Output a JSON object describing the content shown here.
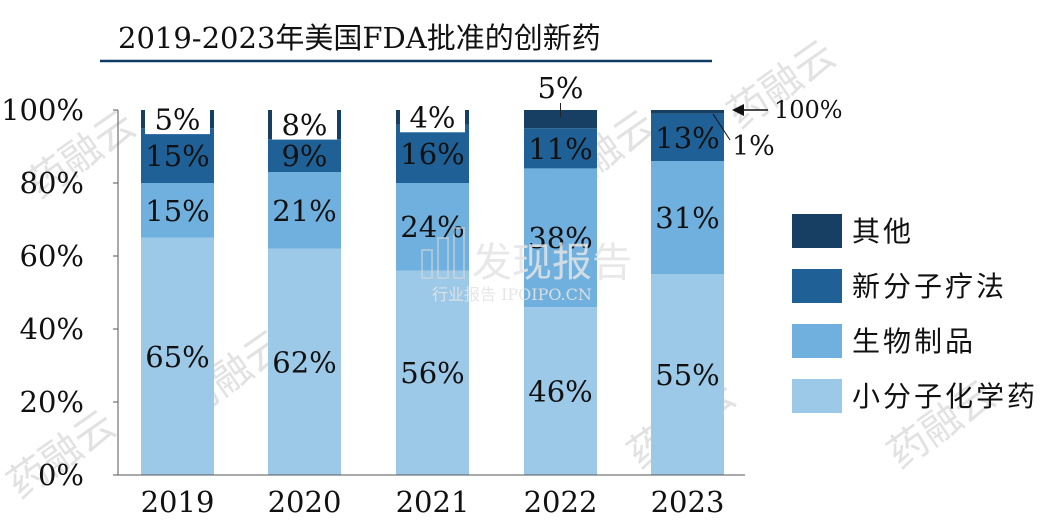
{
  "chart_data": {
    "type": "bar",
    "stacked": true,
    "title": "2019-2023年美国FDA批准的创新药",
    "categories": [
      "2019",
      "2020",
      "2021",
      "2022",
      "2023"
    ],
    "ylim": [
      0,
      100
    ],
    "y_ticks": [
      "0%",
      "20%",
      "40%",
      "60%",
      "80%",
      "100%"
    ],
    "grid": false,
    "legend_position": "right",
    "series": [
      {
        "name": "小分子化学药",
        "color": "#9dc9e9",
        "values": [
          65,
          62,
          56,
          46,
          55
        ],
        "labels": [
          "65%",
          "62%",
          "56%",
          "46%",
          "55%"
        ]
      },
      {
        "name": "生物制品",
        "color": "#6fb0df",
        "values": [
          15,
          21,
          24,
          38,
          31
        ],
        "labels": [
          "15%",
          "21%",
          "24%",
          "38%",
          "31%"
        ]
      },
      {
        "name": "新分子疗法",
        "color": "#1f6197",
        "values": [
          15,
          9,
          16,
          11,
          13
        ],
        "labels": [
          "15%",
          "9%",
          "16%",
          "11%",
          "13%"
        ]
      },
      {
        "name": "其他",
        "color": "#173f64",
        "values": [
          5,
          8,
          4,
          5,
          1
        ],
        "labels": [
          "5%",
          "8%",
          "4%",
          "5%",
          "1%"
        ]
      }
    ],
    "annotations": [
      {
        "text": "100%",
        "target_category": "2023"
      },
      {
        "text": "1%",
        "target_category": "2023"
      }
    ]
  },
  "watermark": {
    "brand": "发现报告",
    "sub": "行业报告 IPOIPO.CN",
    "corner_mark": "药融云"
  }
}
